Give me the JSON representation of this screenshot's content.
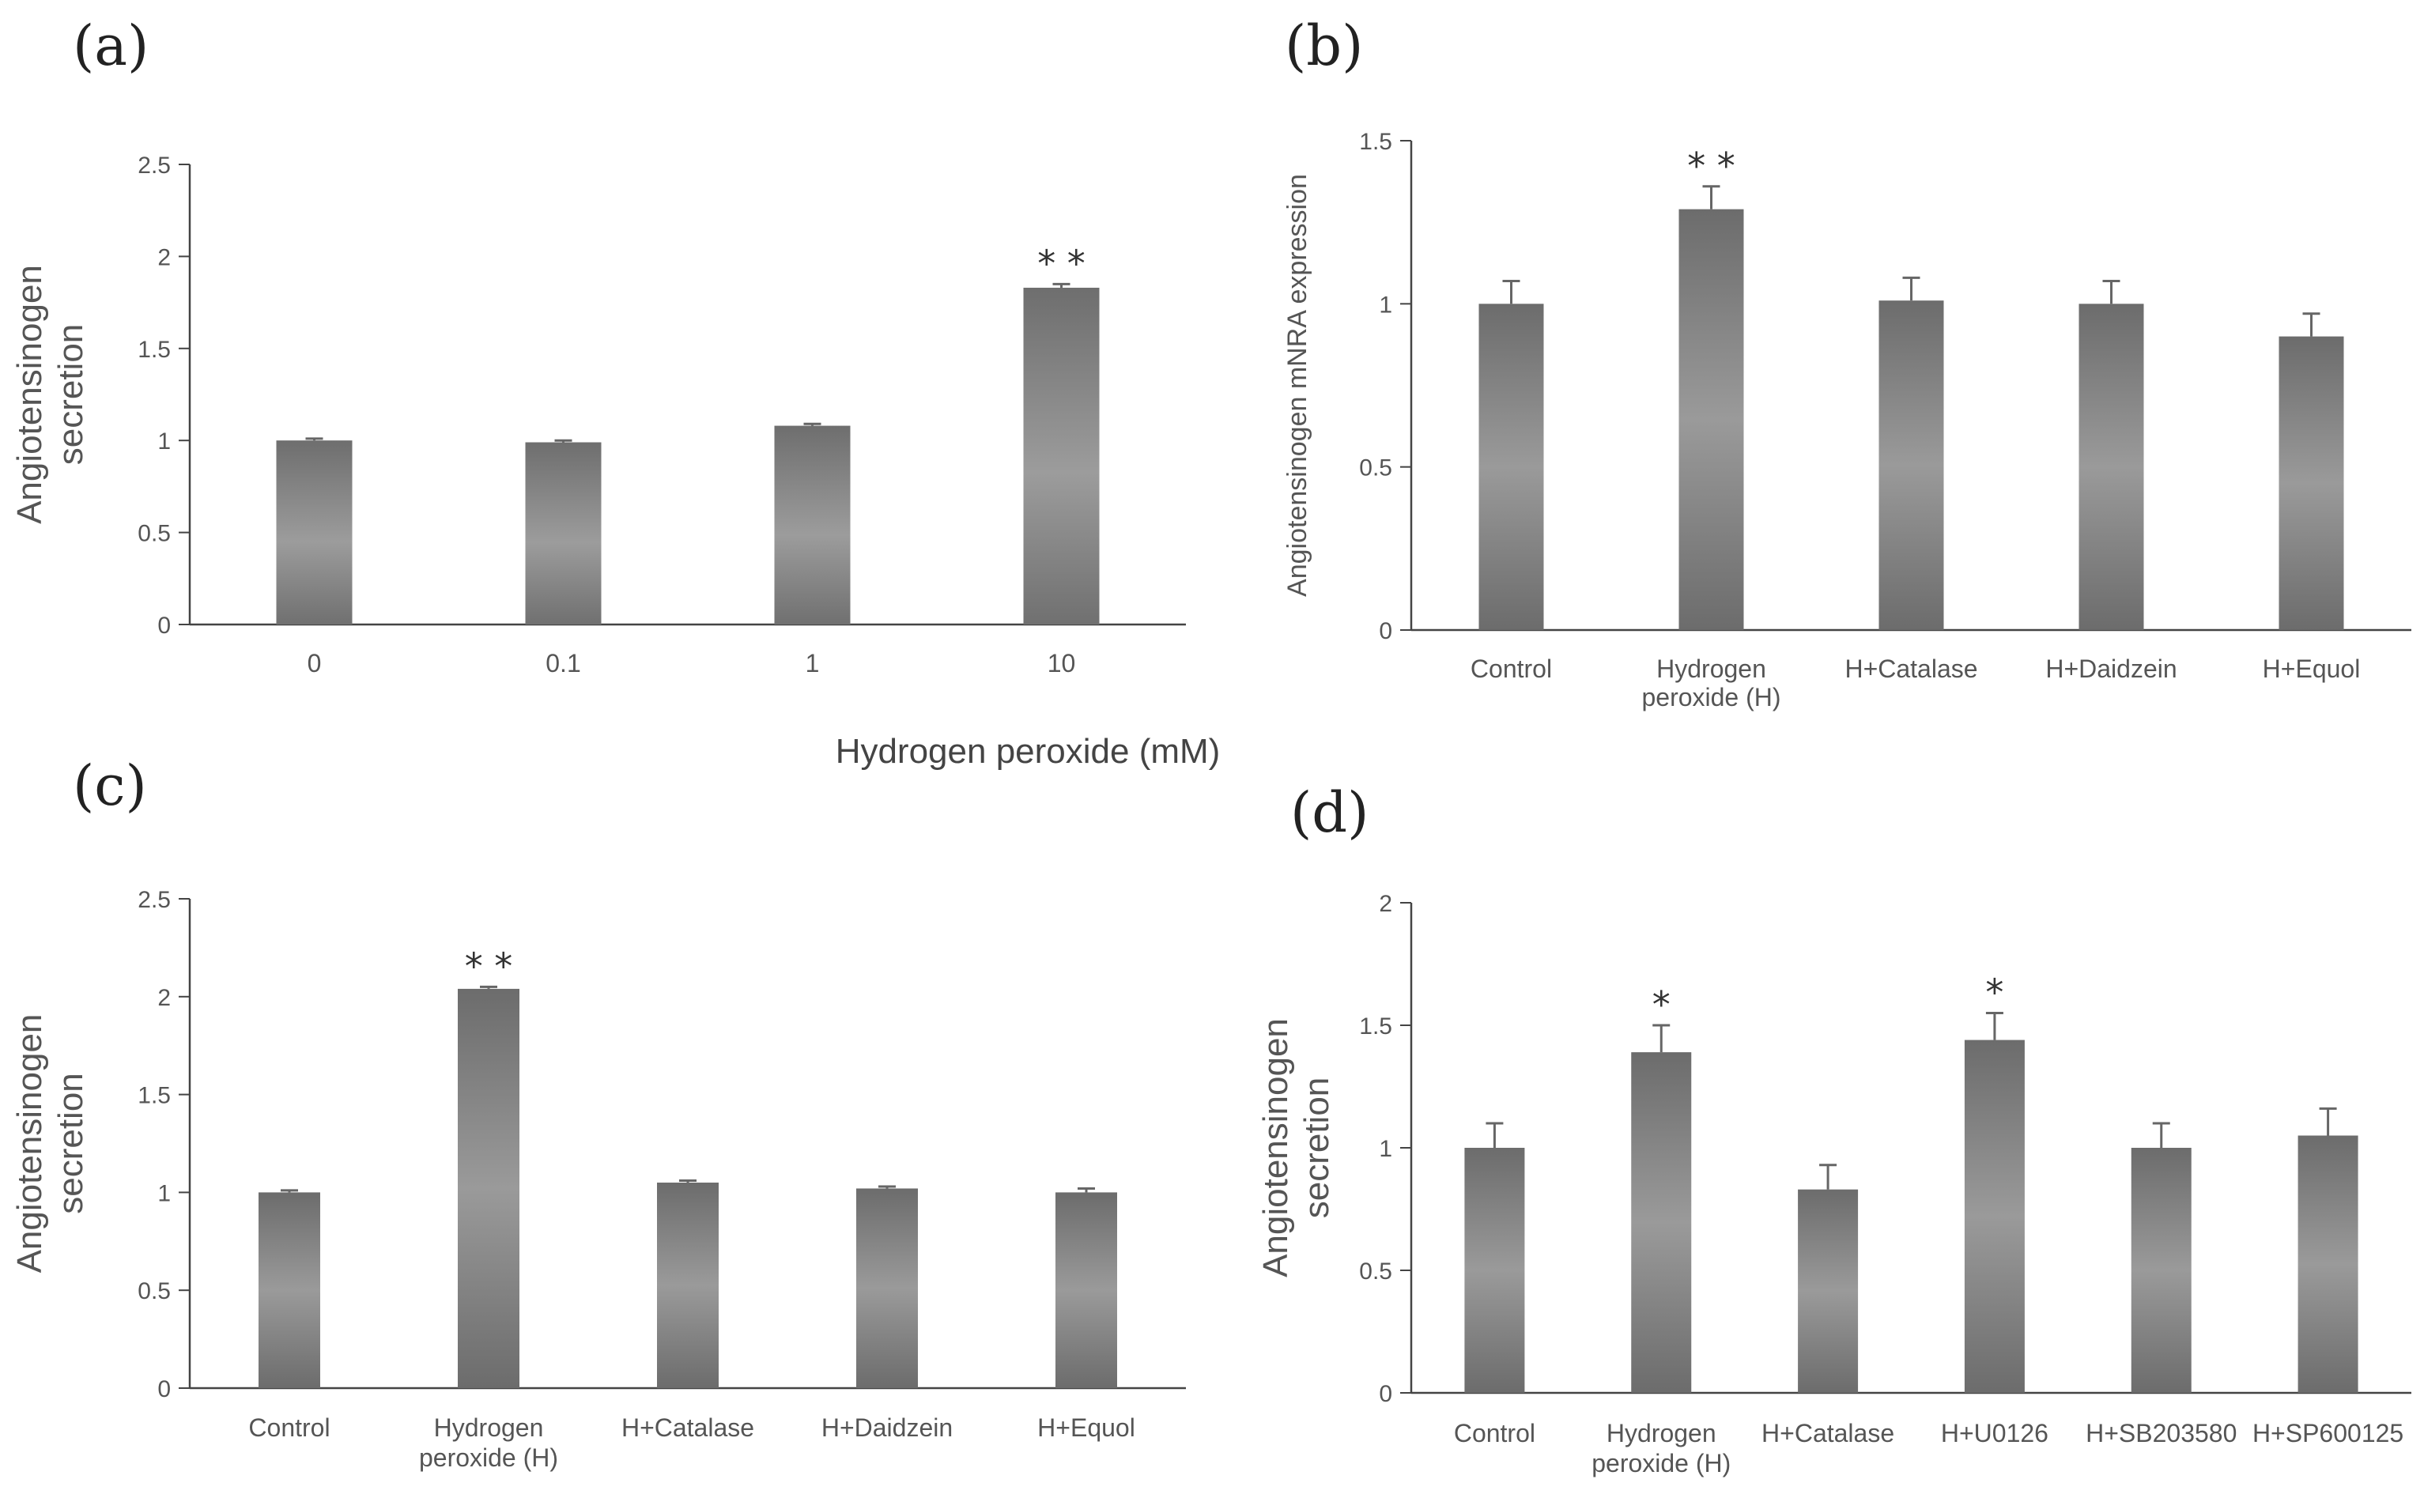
{
  "colors": {
    "bar_dark": "#6b6b6b",
    "bar_light": "#9a9a9a",
    "axis": "#444444",
    "text": "#555555"
  },
  "chart_data": [
    {
      "panel": "(a)",
      "type": "bar",
      "categories": [
        "0",
        "0.1",
        "1",
        "10"
      ],
      "values": [
        1.0,
        0.99,
        1.08,
        1.83
      ],
      "errors": [
        0.01,
        0.01,
        0.01,
        0.02
      ],
      "annotations": [
        "",
        "",
        "",
        "* *"
      ],
      "ylabel": [
        "Angiotensinogen",
        "secretion"
      ],
      "xlabel": "Hydrogen peroxide (mM)",
      "ylim": [
        0,
        2.5
      ],
      "yticks": [
        "0",
        "0.5",
        "1",
        "1.5",
        "2",
        "2.5"
      ],
      "ytick_values": [
        0,
        0.5,
        1,
        1.5,
        2,
        2.5
      ]
    },
    {
      "panel": "(b)",
      "type": "bar",
      "categories": [
        [
          "Control"
        ],
        [
          "Hydrogen",
          "peroxide (H)"
        ],
        [
          "H+Catalase"
        ],
        [
          "H+Daidzein"
        ],
        [
          "H+Equol"
        ]
      ],
      "values": [
        1.0,
        1.29,
        1.01,
        1.0,
        0.9
      ],
      "errors": [
        0.07,
        0.07,
        0.07,
        0.07,
        0.07
      ],
      "annotations": [
        "",
        "* *",
        "",
        "",
        ""
      ],
      "ylabel": [
        "Angiotensinogen mNRA expression"
      ],
      "xlabel": "",
      "ylim": [
        0,
        1.5
      ],
      "yticks": [
        "0",
        "0.5",
        "1",
        "1.5"
      ],
      "ytick_values": [
        0,
        0.5,
        1,
        1.5
      ]
    },
    {
      "panel": "(c)",
      "type": "bar",
      "categories": [
        [
          "Control"
        ],
        [
          "Hydrogen",
          "peroxide (H)"
        ],
        [
          "H+Catalase"
        ],
        [
          "H+Daidzein"
        ],
        [
          "H+Equol"
        ]
      ],
      "values": [
        1.0,
        2.04,
        1.05,
        1.02,
        1.0
      ],
      "errors": [
        0.01,
        0.01,
        0.01,
        0.01,
        0.02
      ],
      "annotations": [
        "",
        "* *",
        "",
        "",
        ""
      ],
      "ylabel": [
        "Angiotensinogen",
        "secretion"
      ],
      "xlabel": "",
      "ylim": [
        0,
        2.5
      ],
      "yticks": [
        "0",
        "0.5",
        "1",
        "1.5",
        "2",
        "2.5"
      ],
      "ytick_values": [
        0,
        0.5,
        1,
        1.5,
        2,
        2.5
      ]
    },
    {
      "panel": "(d)",
      "type": "bar",
      "categories": [
        [
          "Control"
        ],
        [
          "Hydrogen",
          "peroxide (H)"
        ],
        [
          "H+Catalase"
        ],
        [
          "H+U0126"
        ],
        [
          "H+SB203580"
        ],
        [
          "H+SP600125"
        ]
      ],
      "values": [
        1.0,
        1.39,
        0.83,
        1.44,
        1.0,
        1.05
      ],
      "errors": [
        0.1,
        0.11,
        0.1,
        0.11,
        0.1,
        0.11
      ],
      "annotations": [
        "",
        "*",
        "",
        "*",
        "",
        ""
      ],
      "ylabel": [
        "Angiotensinogen",
        "secretion"
      ],
      "xlabel": "",
      "ylim": [
        0,
        2
      ],
      "yticks": [
        "0",
        "0.5",
        "1",
        "1.5",
        "2"
      ],
      "ytick_values": [
        0,
        0.5,
        1,
        1.5,
        2
      ]
    }
  ]
}
